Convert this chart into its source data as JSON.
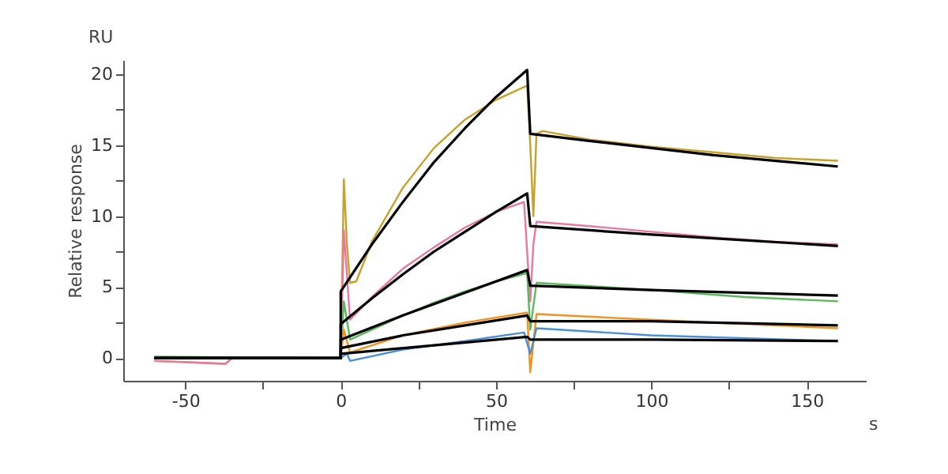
{
  "chart_data": {
    "type": "line",
    "xlabel": "Time",
    "ylabel": "Relative response",
    "annotations": [
      "RU",
      "s"
    ],
    "xlim": [
      -70,
      169
    ],
    "ylim": [
      -1.6,
      21
    ],
    "xticks": [
      -50,
      {
        "value": -25,
        "label": null
      },
      0,
      {
        "value": 25,
        "label": null
      },
      50,
      {
        "value": 75,
        "label": null
      },
      100,
      {
        "value": 125,
        "label": null
      },
      150
    ],
    "yticks": [
      0,
      {
        "value": 2.5,
        "label": null
      },
      5,
      {
        "value": 7.5,
        "label": null
      },
      10,
      {
        "value": 12.5,
        "label": null
      },
      15,
      {
        "value": 17.5,
        "label": null
      },
      20
    ],
    "grid": false,
    "marker": "none",
    "line_style": "solid",
    "series": [
      {
        "color": "#c8a02a",
        "x": [
          -60,
          -37,
          -35,
          0,
          1,
          2,
          3,
          5,
          10,
          20,
          30,
          40,
          50,
          60,
          61,
          62,
          63,
          65,
          80,
          100,
          120,
          140,
          160
        ],
        "values": [
          -0.2,
          -0.4,
          0,
          0,
          12.6,
          8,
          5.3,
          5.4,
          8.2,
          12,
          14.8,
          16.8,
          18.2,
          19.2,
          15,
          10,
          15.8,
          16,
          15.4,
          14.9,
          14.5,
          14.1,
          13.9
        ]
      },
      {
        "color": "#e8789f",
        "x": [
          -60,
          -37,
          -35,
          0,
          1,
          3,
          10,
          20,
          30,
          40,
          50,
          59,
          61,
          62,
          63,
          80,
          100,
          120,
          140,
          160
        ],
        "values": [
          -0.2,
          -0.4,
          0,
          0,
          9,
          2.7,
          4.3,
          6.3,
          7.8,
          9.2,
          10.3,
          11,
          4,
          8,
          9.6,
          9.3,
          8.9,
          8.5,
          8.2,
          8
        ]
      },
      {
        "color": "#5cb85c",
        "x": [
          -60,
          0,
          1,
          3,
          10,
          20,
          30,
          40,
          50,
          60,
          61,
          63,
          100,
          130,
          160
        ],
        "values": [
          0.1,
          0,
          4,
          1.3,
          2,
          3,
          3.9,
          4.7,
          5.4,
          6,
          2,
          5.3,
          4.8,
          4.3,
          4
        ]
      },
      {
        "color": "#f5921e",
        "x": [
          -60,
          0,
          1,
          3,
          20,
          40,
          60,
          61,
          63,
          100,
          160
        ],
        "values": [
          0,
          0,
          2,
          0.4,
          1.6,
          2.5,
          3.2,
          -1,
          3.1,
          2.7,
          2.1
        ]
      },
      {
        "color": "#4a90d9",
        "x": [
          -60,
          0,
          2,
          3,
          20,
          40,
          59,
          61,
          63,
          100,
          160
        ],
        "values": [
          0,
          0,
          0.3,
          -0.2,
          0.6,
          1.2,
          1.8,
          0.3,
          2.1,
          1.6,
          1.2
        ]
      },
      {
        "color": "#000000",
        "x": [
          -60,
          0,
          0,
          10,
          20,
          30,
          40,
          50,
          60,
          61,
          80,
          100,
          120,
          140,
          160
        ],
        "values": [
          0,
          0,
          4.7,
          8,
          11,
          13.8,
          16.2,
          18.4,
          20.3,
          15.8,
          15.3,
          14.8,
          14.3,
          13.9,
          13.5
        ]
      },
      {
        "color": "#000000",
        "x": [
          -60,
          0,
          0,
          10,
          20,
          30,
          40,
          50,
          60,
          61,
          100,
          160
        ],
        "values": [
          0,
          0,
          2.4,
          4.2,
          5.9,
          7.5,
          8.9,
          10.3,
          11.6,
          9.3,
          8.7,
          7.9
        ]
      },
      {
        "color": "#000000",
        "x": [
          -60,
          0,
          0,
          20,
          40,
          60,
          61,
          100,
          160
        ],
        "values": [
          0,
          0,
          1.3,
          3,
          4.6,
          6.2,
          5.1,
          4.8,
          4.4
        ]
      },
      {
        "color": "#000000",
        "x": [
          -60,
          0,
          0,
          20,
          40,
          60,
          61,
          100,
          160
        ],
        "values": [
          0,
          0,
          0.7,
          1.6,
          2.3,
          3,
          2.6,
          2.6,
          2.3
        ]
      },
      {
        "color": "#000000",
        "x": [
          -60,
          0,
          0,
          30,
          60,
          61,
          100,
          160
        ],
        "values": [
          0,
          0,
          0.3,
          0.9,
          1.5,
          1.3,
          1.3,
          1.2
        ]
      }
    ]
  }
}
